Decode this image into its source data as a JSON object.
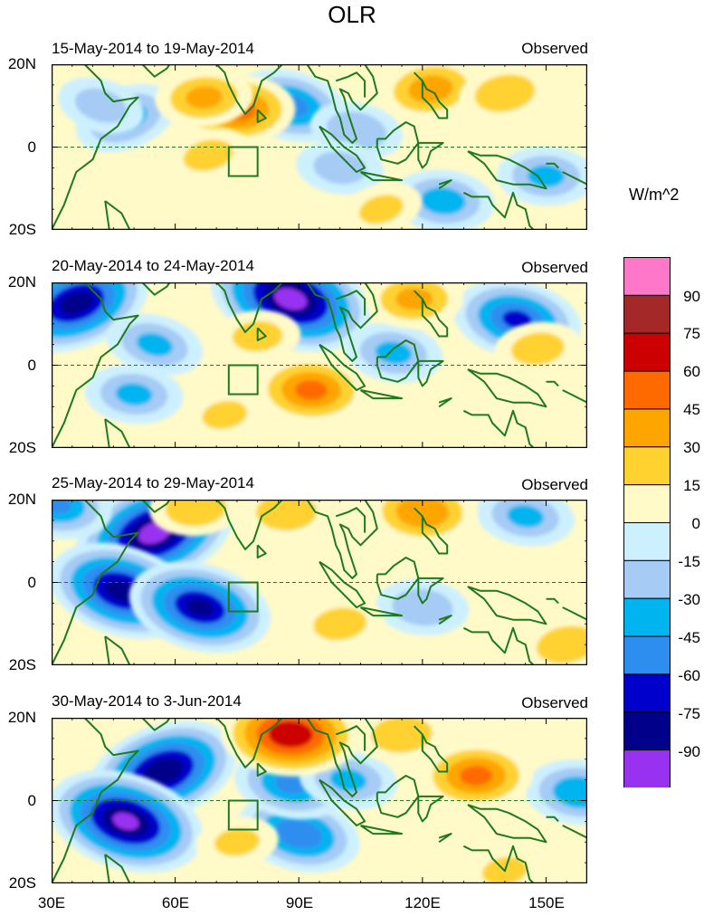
{
  "chart_data": {
    "type": "contour_map",
    "title": "OLR",
    "units": "W/m^2",
    "x_axis": {
      "ticks": [
        "30E",
        "60E",
        "90E",
        "120E",
        "150E"
      ],
      "values": [
        30,
        60,
        90,
        120,
        150
      ],
      "range": [
        30,
        160
      ]
    },
    "y_axis": {
      "ticks": [
        "20N",
        "0",
        "20S"
      ],
      "values": [
        20,
        0,
        -20
      ],
      "range": [
        -20,
        20
      ]
    },
    "colorbar": {
      "labels": [
        "90",
        "75",
        "60",
        "45",
        "30",
        "15",
        "0",
        "-15",
        "-30",
        "-45",
        "-60",
        "-75",
        "-90"
      ],
      "colors": [
        "#ff77c8",
        "#a42828",
        "#cc0000",
        "#ff6a00",
        "#ffa500",
        "#ffd230",
        "#fffac8",
        "#cdf0ff",
        "#a6cbf5",
        "#00b4f0",
        "#2d8ef0",
        "#0000cd",
        "#00008b",
        "#9932f0"
      ]
    },
    "box_region": {
      "lon": [
        73,
        80
      ],
      "lat": [
        -7,
        0
      ]
    },
    "panels": [
      {
        "period": "15-May-2014 to 19-May-2014",
        "label": "Observed",
        "anomalies": [
          {
            "lon": 48,
            "lat": 7,
            "value": -35
          },
          {
            "lon": 42,
            "lat": 10,
            "value": -20
          },
          {
            "lon": 88,
            "lat": 10,
            "value": -48
          },
          {
            "lon": 104,
            "lat": 4,
            "value": -25
          },
          {
            "lon": 100,
            "lat": -5,
            "value": -20
          },
          {
            "lon": 125,
            "lat": -13,
            "value": -35
          },
          {
            "lon": 150,
            "lat": -7,
            "value": -30
          },
          {
            "lon": 75,
            "lat": 9,
            "value": 48
          },
          {
            "lon": 67,
            "lat": 12,
            "value": 30
          },
          {
            "lon": 122,
            "lat": 14,
            "value": 35
          },
          {
            "lon": 140,
            "lat": 13,
            "value": 25
          },
          {
            "lon": 68,
            "lat": -2,
            "value": 18
          },
          {
            "lon": 110,
            "lat": -15,
            "value": 15
          }
        ]
      },
      {
        "period": "20-May-2014 to 24-May-2014",
        "label": "Observed",
        "anomalies": [
          {
            "lon": 36,
            "lat": 15,
            "value": -80
          },
          {
            "lon": 88,
            "lat": 16,
            "value": -95
          },
          {
            "lon": 55,
            "lat": 5,
            "value": -30
          },
          {
            "lon": 143,
            "lat": 11,
            "value": -60
          },
          {
            "lon": 113,
            "lat": 3,
            "value": -30
          },
          {
            "lon": 50,
            "lat": -7,
            "value": -30
          },
          {
            "lon": 93,
            "lat": -6,
            "value": 45
          },
          {
            "lon": 118,
            "lat": 16,
            "value": 30
          },
          {
            "lon": 80,
            "lat": 7,
            "value": 18
          },
          {
            "lon": 148,
            "lat": 4,
            "value": 20
          },
          {
            "lon": 72,
            "lat": -12,
            "value": 15
          }
        ]
      },
      {
        "period": "25-May-2014 to 29-May-2014",
        "label": "Observed",
        "anomalies": [
          {
            "lon": 55,
            "lat": 12,
            "value": -95
          },
          {
            "lon": 47,
            "lat": -2,
            "value": -80
          },
          {
            "lon": 66,
            "lat": -6,
            "value": -75
          },
          {
            "lon": 31,
            "lat": 19,
            "value": -45
          },
          {
            "lon": 145,
            "lat": 16,
            "value": -30
          },
          {
            "lon": 120,
            "lat": -6,
            "value": -25
          },
          {
            "lon": 120,
            "lat": 17,
            "value": 40
          },
          {
            "lon": 87,
            "lat": 17,
            "value": 25
          },
          {
            "lon": 65,
            "lat": 18,
            "value": 25
          },
          {
            "lon": 100,
            "lat": -10,
            "value": 20
          },
          {
            "lon": 155,
            "lat": -15,
            "value": 25
          }
        ]
      },
      {
        "period": "30-May-2014 to 3-Jun-2014",
        "label": "Observed",
        "anomalies": [
          {
            "lon": 57,
            "lat": 7,
            "value": -85
          },
          {
            "lon": 48,
            "lat": -5,
            "value": -90
          },
          {
            "lon": 90,
            "lat": -8,
            "value": -55
          },
          {
            "lon": 88,
            "lat": 4,
            "value": -45
          },
          {
            "lon": 102,
            "lat": 5,
            "value": -30
          },
          {
            "lon": 158,
            "lat": 2,
            "value": -40
          },
          {
            "lon": 88,
            "lat": 16,
            "value": 70
          },
          {
            "lon": 133,
            "lat": 6,
            "value": 45
          },
          {
            "lon": 115,
            "lat": 16,
            "value": 25
          },
          {
            "lon": 75,
            "lat": -10,
            "value": 15
          },
          {
            "lon": 140,
            "lat": -17,
            "value": 15
          }
        ]
      }
    ]
  }
}
